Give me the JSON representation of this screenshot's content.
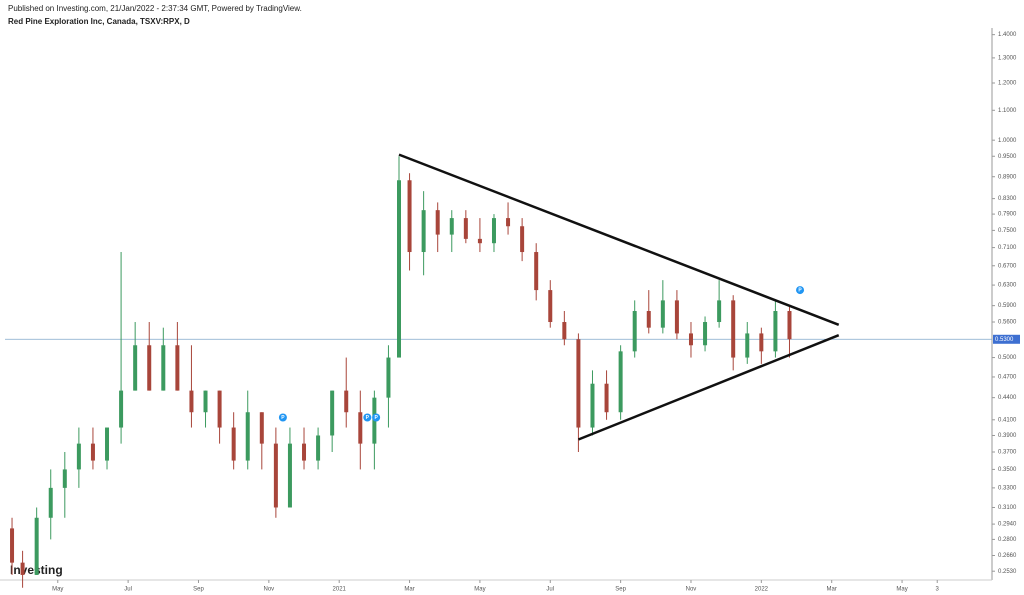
{
  "header": {
    "published": "Published on Investing.com, 21/Jan/2022 - 2:37:34 GMT, Powered by TradingView.",
    "symbol": "Red Pine Exploration Inc, Canada, TSXV:RPX, D",
    "logo": "Investing"
  },
  "chart_data": {
    "type": "candlestick",
    "log_scale": true,
    "grid": false,
    "up_color": "#3c9a5f",
    "down_color": "#a8453a",
    "x": [
      -1.3,
      -1.0,
      -0.6,
      -0.2,
      0.2,
      0.6,
      1.0,
      1.4,
      1.8,
      2.2,
      2.6,
      3.0,
      3.4,
      3.8,
      4.2,
      4.6,
      5.0,
      5.4,
      5.8,
      6.2,
      6.6,
      7.0,
      7.4,
      7.8,
      8.2,
      8.6,
      9.0,
      9.4,
      9.7,
      10.0,
      10.4,
      10.8,
      11.2,
      11.6,
      12.0,
      12.4,
      12.8,
      13.2,
      13.6,
      14.0,
      14.4,
      14.8,
      15.2,
      15.6,
      16.0,
      16.4,
      16.8,
      17.2,
      17.6,
      18.0,
      18.4,
      18.8,
      19.2,
      19.6,
      20.0,
      20.4,
      20.8
    ],
    "open": [
      0.29,
      0.26,
      0.25,
      0.3,
      0.33,
      0.35,
      0.38,
      0.36,
      0.4,
      0.45,
      0.52,
      0.45,
      0.52,
      0.45,
      0.42,
      0.45,
      0.4,
      0.36,
      0.42,
      0.38,
      0.31,
      0.38,
      0.36,
      0.39,
      0.45,
      0.42,
      0.38,
      0.44,
      0.5,
      0.88,
      0.7,
      0.8,
      0.74,
      0.78,
      0.73,
      0.72,
      0.78,
      0.76,
      0.7,
      0.62,
      0.56,
      0.53,
      0.4,
      0.46,
      0.42,
      0.51,
      0.58,
      0.55,
      0.6,
      0.54,
      0.52,
      0.56,
      0.6,
      0.5,
      0.54,
      0.51,
      0.58
    ],
    "high": [
      0.3,
      0.27,
      0.31,
      0.35,
      0.37,
      0.4,
      0.4,
      0.4,
      0.7,
      0.56,
      0.56,
      0.55,
      0.56,
      0.52,
      0.45,
      0.45,
      0.42,
      0.45,
      0.42,
      0.4,
      0.4,
      0.4,
      0.4,
      0.45,
      0.5,
      0.45,
      0.45,
      0.52,
      0.95,
      0.9,
      0.85,
      0.82,
      0.8,
      0.8,
      0.78,
      0.79,
      0.82,
      0.78,
      0.72,
      0.64,
      0.58,
      0.54,
      0.48,
      0.48,
      0.52,
      0.6,
      0.62,
      0.64,
      0.62,
      0.56,
      0.57,
      0.64,
      0.61,
      0.56,
      0.55,
      0.6,
      0.59
    ],
    "low": [
      0.25,
      0.24,
      0.25,
      0.28,
      0.3,
      0.33,
      0.35,
      0.35,
      0.38,
      0.45,
      0.45,
      0.45,
      0.45,
      0.4,
      0.4,
      0.38,
      0.35,
      0.35,
      0.35,
      0.3,
      0.31,
      0.35,
      0.35,
      0.37,
      0.4,
      0.35,
      0.35,
      0.4,
      0.5,
      0.66,
      0.65,
      0.7,
      0.7,
      0.72,
      0.7,
      0.7,
      0.74,
      0.68,
      0.6,
      0.55,
      0.52,
      0.37,
      0.39,
      0.41,
      0.41,
      0.5,
      0.54,
      0.54,
      0.53,
      0.5,
      0.51,
      0.55,
      0.48,
      0.49,
      0.49,
      0.5,
      0.5
    ],
    "close": [
      0.26,
      0.25,
      0.3,
      0.33,
      0.35,
      0.38,
      0.36,
      0.4,
      0.45,
      0.52,
      0.45,
      0.52,
      0.45,
      0.42,
      0.45,
      0.4,
      0.36,
      0.42,
      0.38,
      0.31,
      0.38,
      0.36,
      0.39,
      0.45,
      0.42,
      0.38,
      0.44,
      0.5,
      0.88,
      0.7,
      0.8,
      0.74,
      0.78,
      0.73,
      0.72,
      0.78,
      0.76,
      0.7,
      0.62,
      0.56,
      0.53,
      0.4,
      0.46,
      0.42,
      0.51,
      0.58,
      0.55,
      0.6,
      0.54,
      0.52,
      0.56,
      0.6,
      0.5,
      0.54,
      0.51,
      0.58,
      0.53
    ],
    "xlim": [
      -1.5,
      26.5
    ],
    "xticks": [
      {
        "value": 0,
        "label": "May"
      },
      {
        "value": 2,
        "label": "Jul"
      },
      {
        "value": 4,
        "label": "Sep"
      },
      {
        "value": 6,
        "label": "Nov"
      },
      {
        "value": 8,
        "label": "2021"
      },
      {
        "value": 10,
        "label": "Mar"
      },
      {
        "value": 12,
        "label": "May"
      },
      {
        "value": 14,
        "label": "Jul"
      },
      {
        "value": 16,
        "label": "Sep"
      },
      {
        "value": 18,
        "label": "Nov"
      },
      {
        "value": 20,
        "label": "2022"
      },
      {
        "value": 22,
        "label": "Mar"
      },
      {
        "value": 24,
        "label": "May"
      },
      {
        "value": 25,
        "label": "3"
      }
    ],
    "ylim": [
      0.246,
      1.43
    ],
    "yticks": [
      {
        "value": 1.4,
        "label": "1.4000"
      },
      {
        "value": 1.3,
        "label": "1.3000"
      },
      {
        "value": 1.2,
        "label": "1.2000"
      },
      {
        "value": 1.1,
        "label": "1.1000"
      },
      {
        "value": 1,
        "label": "1.0000"
      },
      {
        "value": 0.95,
        "label": "0.9500"
      },
      {
        "value": 0.89,
        "label": "0.8900"
      },
      {
        "value": 0.83,
        "label": "0.8300"
      },
      {
        "value": 0.79,
        "label": "0.7900"
      },
      {
        "value": 0.75,
        "label": "0.7500"
      },
      {
        "value": 0.71,
        "label": "0.7100"
      },
      {
        "value": 0.67,
        "label": "0.6700"
      },
      {
        "value": 0.63,
        "label": "0.6300"
      },
      {
        "value": 0.59,
        "label": "0.5900"
      },
      {
        "value": 0.56,
        "label": "0.5600"
      },
      {
        "value": 0.5,
        "label": "0.5000"
      },
      {
        "value": 0.47,
        "label": "0.4700"
      },
      {
        "value": 0.44,
        "label": "0.4400"
      },
      {
        "value": 0.41,
        "label": "0.4100"
      },
      {
        "value": 0.39,
        "label": "0.3900"
      },
      {
        "value": 0.37,
        "label": "0.3700"
      },
      {
        "value": 0.35,
        "label": "0.3500"
      },
      {
        "value": 0.33,
        "label": "0.3300"
      },
      {
        "value": 0.31,
        "label": "0.3100"
      },
      {
        "value": 0.294,
        "label": "0.2940"
      },
      {
        "value": 0.28,
        "label": "0.2800"
      },
      {
        "value": 0.266,
        "label": "0.2660"
      },
      {
        "value": 0.253,
        "label": "0.2530"
      }
    ],
    "last_price": {
      "value": 0.53,
      "label": "0.5300"
    },
    "events": {
      "labels": [
        "P",
        "P",
        "P",
        "P"
      ],
      "x": [
        6.4,
        8.8,
        9.05,
        21.1
      ],
      "y": [
        0.413,
        0.413,
        0.413,
        0.62
      ]
    },
    "trendlines": [
      {
        "x": [
          9.7,
          22.2
        ],
        "y": [
          0.955,
          0.555
        ]
      },
      {
        "x": [
          14.8,
          22.2
        ],
        "y": [
          0.385,
          0.537
        ]
      }
    ]
  }
}
